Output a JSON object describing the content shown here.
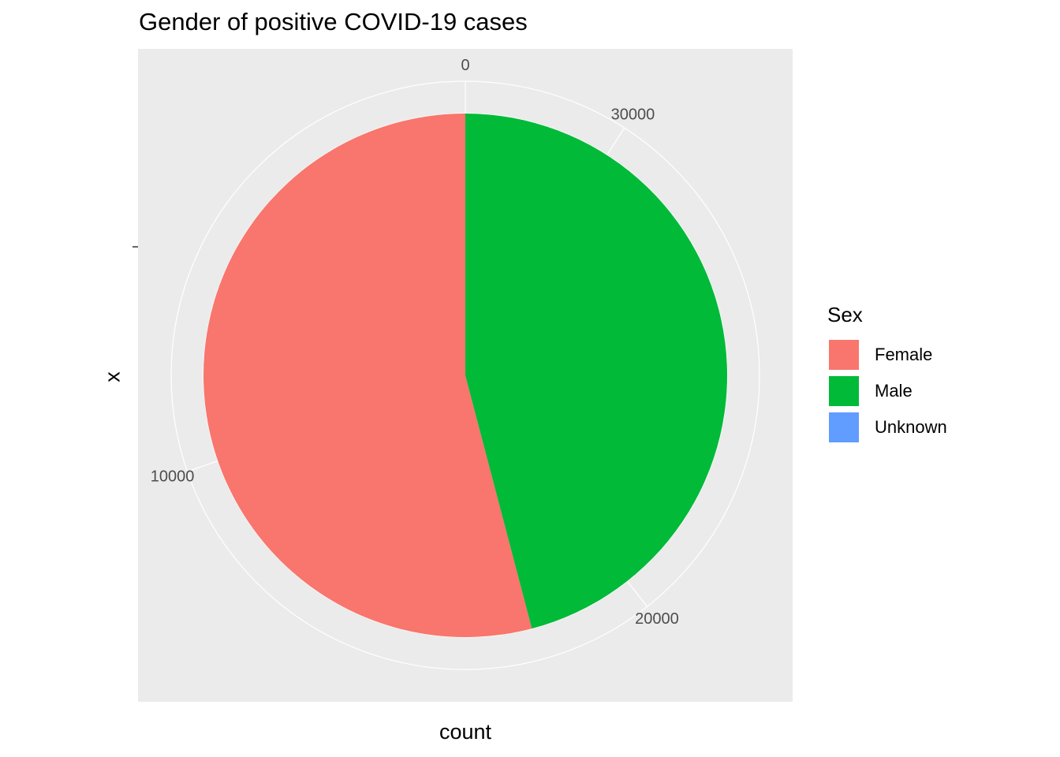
{
  "chart_data": {
    "type": "pie",
    "title": "Gender of positive COVID-19 cases",
    "xlabel": "count",
    "ylabel": "x",
    "categories": [
      "Female",
      "Male",
      "Unknown"
    ],
    "values": [
      17850,
      15150,
      0
    ],
    "total": 33000,
    "colors": [
      "#F8766D",
      "#00BA38",
      "#619CFF"
    ],
    "theta_ticks": [
      0,
      10000,
      20000,
      30000
    ],
    "theta_tick_labels": [
      "0",
      "10000",
      "20000",
      "30000"
    ],
    "legend": {
      "title": "Sex",
      "position": "right"
    },
    "grid": true,
    "panel_background": "#EBEBEB"
  }
}
